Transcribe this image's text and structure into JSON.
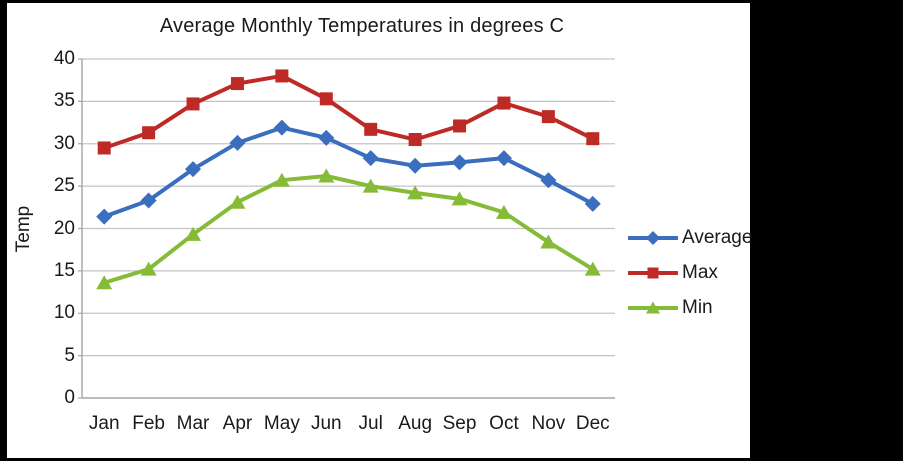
{
  "frame": {
    "background_color": "#000000",
    "panel_color": "#ffffff"
  },
  "chart_data": {
    "type": "line",
    "title": "Average Monthly Temperatures in degrees C",
    "xlabel": "",
    "ylabel": "Temp",
    "categories": [
      "Jan",
      "Feb",
      "Mar",
      "Apr",
      "May",
      "Jun",
      "Jul",
      "Aug",
      "Sep",
      "Oct",
      "Nov",
      "Dec"
    ],
    "y_ticks": [
      0,
      5,
      10,
      15,
      20,
      25,
      30,
      35,
      40
    ],
    "ylim": [
      0,
      40
    ],
    "grid": true,
    "legend_position": "right",
    "series": [
      {
        "name": "Average",
        "marker": "diamond",
        "color": "#3b6ebe",
        "values": [
          21.4,
          23.3,
          27.0,
          30.1,
          31.9,
          30.7,
          28.3,
          27.4,
          27.8,
          28.3,
          25.7,
          22.9
        ]
      },
      {
        "name": "Max",
        "marker": "square",
        "color": "#be2b27",
        "values": [
          29.5,
          31.3,
          34.7,
          37.1,
          38.0,
          35.3,
          31.7,
          30.5,
          32.1,
          34.8,
          33.2,
          30.6
        ]
      },
      {
        "name": "Min",
        "marker": "triangle",
        "color": "#85bb37",
        "values": [
          13.6,
          15.2,
          19.3,
          23.1,
          25.7,
          26.2,
          25.0,
          24.2,
          23.5,
          21.9,
          18.4,
          15.2
        ]
      }
    ],
    "colors": {
      "gridline": "#c4c4c4",
      "axis": "#a6a6a6",
      "text": "#1a1a1a"
    }
  }
}
